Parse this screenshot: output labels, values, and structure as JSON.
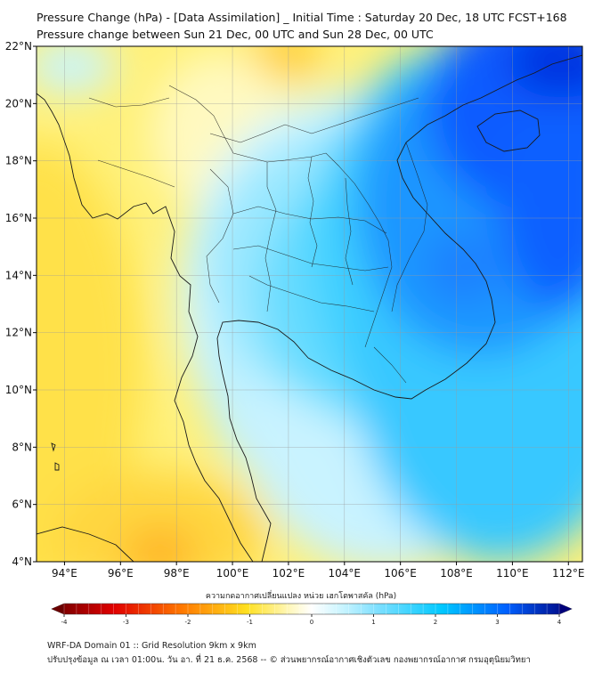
{
  "header": {
    "title": "Pressure Change (hPa) - [Data Assimilation] _ Initial Time : Saturday 20 Dec, 18 UTC FCST+168",
    "subtitle": "Pressure change between Sun 21 Dec, 00 UTC and Sun 28 Dec, 00 UTC"
  },
  "map": {
    "lat_ticks": [
      "4°N",
      "6°N",
      "8°N",
      "10°N",
      "12°N",
      "14°N",
      "16°N",
      "18°N",
      "20°N",
      "22°N"
    ],
    "lon_ticks": [
      "94°E",
      "96°E",
      "98°E",
      "100°E",
      "102°E",
      "104°E",
      "106°E",
      "108°E",
      "110°E",
      "112°E"
    ],
    "lat_range": [
      4,
      22
    ],
    "lon_range": [
      93.0,
      112.5
    ],
    "grid": true
  },
  "colorbar": {
    "label": "ความกดอากาศเปลี่ยนแปลง หน่วย เฮกโตพาสคัล (hPa)",
    "ticks": [
      "-4",
      "-3",
      "-2",
      "-1",
      "0",
      "1",
      "2",
      "3",
      "4"
    ],
    "range": [
      -4,
      4
    ],
    "colors": {
      "neg4": "#6b0000",
      "neg3": "#e00000",
      "neg2": "#ff8c00",
      "neg1": "#ffe020",
      "zero": "#ffffff",
      "pos1": "#80e0ff",
      "pos2": "#00c8ff",
      "pos3": "#0060ff",
      "pos4": "#00007a"
    }
  },
  "footer": {
    "line1": "WRF-DA Domain 01 :: Grid Resolution 9km x 9km",
    "line2": "ปรับปรุงข้อมูล ณ เวลา 01:00น. วัน อา. ที่ 21 ธ.ค. 2568 -- © ส่วนพยากรณ์อากาศเชิงตัวเลข กองพยากรณ์อากาศ กรมอุตุนิยมวิทยา"
  }
}
